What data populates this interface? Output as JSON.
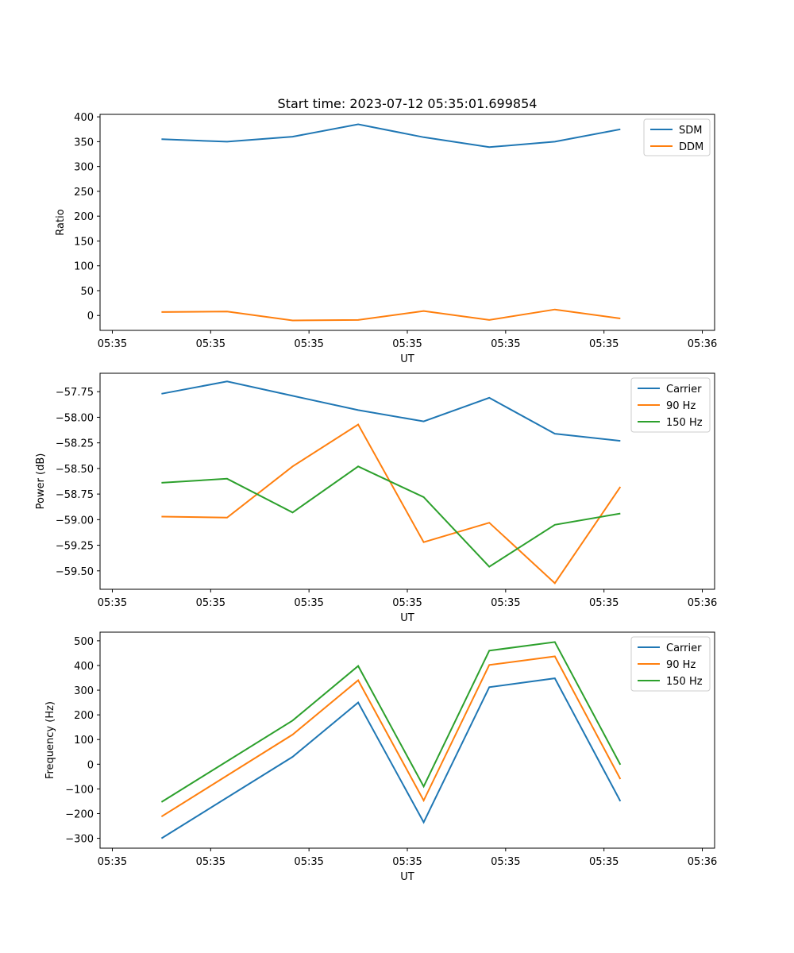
{
  "chart_data": [
    {
      "type": "line",
      "title": "Start time: 2023-07-12 05:35:01.699854",
      "xlabel": "UT",
      "ylabel": "Ratio",
      "x": [
        0.6,
        0.64,
        0.68,
        0.72,
        0.76,
        0.8,
        0.84,
        0.88
      ],
      "xlim": [
        0.5625,
        0.9375
      ],
      "xticks": [
        0.57,
        0.63,
        0.69,
        0.75,
        0.81,
        0.87,
        0.93
      ],
      "xtick_labels": [
        "05:35",
        "05:35",
        "05:35",
        "05:35",
        "05:35",
        "05:35",
        "05:36"
      ],
      "ylim": [
        -30,
        405
      ],
      "yticks": [
        0,
        50,
        100,
        150,
        200,
        250,
        300,
        350,
        400
      ],
      "ytick_labels": [
        "0",
        "50",
        "100",
        "150",
        "200",
        "250",
        "300",
        "350",
        "400"
      ],
      "legend": "top-right",
      "series": [
        {
          "name": "SDM",
          "color": "#1f77b4",
          "values": [
            355,
            350,
            360,
            385,
            359,
            339,
            350,
            375
          ]
        },
        {
          "name": "DDM",
          "color": "#ff7f0e",
          "values": [
            7,
            8,
            -10,
            -9,
            9,
            -9,
            12,
            -6
          ]
        }
      ]
    },
    {
      "type": "line",
      "xlabel": "UT",
      "ylabel": "Power (dB)",
      "x": [
        0.6,
        0.64,
        0.68,
        0.72,
        0.76,
        0.8,
        0.84,
        0.88
      ],
      "xlim": [
        0.5625,
        0.9375
      ],
      "xticks": [
        0.57,
        0.63,
        0.69,
        0.75,
        0.81,
        0.87,
        0.93
      ],
      "xtick_labels": [
        "05:35",
        "05:35",
        "05:35",
        "05:35",
        "05:35",
        "05:35",
        "05:36"
      ],
      "ylim": [
        -59.68,
        -57.57
      ],
      "yticks": [
        -59.5,
        -59.25,
        -59.0,
        -58.75,
        -58.5,
        -58.25,
        -58.0,
        -57.75
      ],
      "ytick_labels": [
        "−59.50",
        "−59.25",
        "−59.00",
        "−58.75",
        "−58.50",
        "−58.25",
        "−58.00",
        "−57.75"
      ],
      "legend": "top-right",
      "series": [
        {
          "name": "Carrier",
          "color": "#1f77b4",
          "values": [
            -57.77,
            -57.65,
            -57.79,
            -57.93,
            -58.04,
            -57.81,
            -58.16,
            -58.23
          ]
        },
        {
          "name": "90 Hz",
          "color": "#ff7f0e",
          "values": [
            -58.97,
            -58.98,
            -58.48,
            -58.07,
            -59.22,
            -59.03,
            -59.62,
            -58.68
          ]
        },
        {
          "name": "150 Hz",
          "color": "#2ca02c",
          "values": [
            -58.64,
            -58.6,
            -58.93,
            -58.48,
            -58.78,
            -59.46,
            -59.05,
            -58.94
          ]
        }
      ]
    },
    {
      "type": "line",
      "xlabel": "UT",
      "ylabel": "Frequency (Hz)",
      "x": [
        0.6,
        0.64,
        0.68,
        0.72,
        0.76,
        0.8,
        0.84,
        0.88
      ],
      "xlim": [
        0.5625,
        0.9375
      ],
      "xticks": [
        0.57,
        0.63,
        0.69,
        0.75,
        0.81,
        0.87,
        0.93
      ],
      "xtick_labels": [
        "05:35",
        "05:35",
        "05:35",
        "05:35",
        "05:35",
        "05:35",
        "05:36"
      ],
      "ylim": [
        -340,
        535
      ],
      "yticks": [
        -300,
        -200,
        -100,
        0,
        100,
        200,
        300,
        400,
        500
      ],
      "ytick_labels": [
        "−300",
        "−200",
        "−100",
        "0",
        "100",
        "200",
        "300",
        "400",
        "500"
      ],
      "legend": "top-right",
      "series": [
        {
          "name": "Carrier",
          "color": "#1f77b4",
          "values": [
            -300,
            null,
            30,
            250,
            -235,
            312,
            348,
            -150
          ]
        },
        {
          "name": "90 Hz",
          "color": "#ff7f0e",
          "values": [
            -212,
            null,
            120,
            340,
            -147,
            402,
            437,
            -60
          ]
        },
        {
          "name": "150 Hz",
          "color": "#2ca02c",
          "values": [
            -153,
            null,
            177,
            398,
            -90,
            460,
            495,
            -2
          ]
        }
      ]
    }
  ]
}
